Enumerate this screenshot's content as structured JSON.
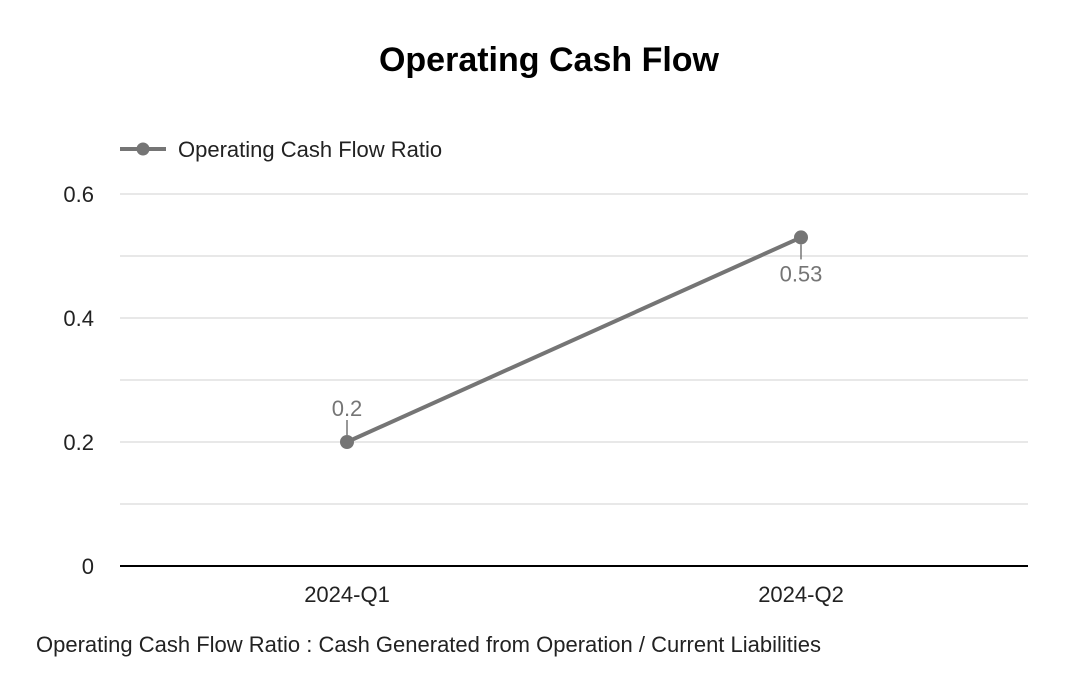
{
  "chart_data": {
    "type": "line",
    "title": "Operating Cash Flow",
    "categories": [
      "2024-Q1",
      "2024-Q2"
    ],
    "series": [
      {
        "name": "Operating Cash Flow Ratio",
        "values": [
          0.2,
          0.53
        ],
        "labels": [
          "0.2",
          "0.53"
        ],
        "color": "#757575"
      }
    ],
    "ylim": [
      0,
      0.6
    ],
    "yticks": [
      {
        "value": 0,
        "label": "0"
      },
      {
        "value": 0.2,
        "label": "0.2"
      },
      {
        "value": 0.4,
        "label": "0.4"
      },
      {
        "value": 0.6,
        "label": "0.6"
      }
    ],
    "minor_gridlines": [
      0.1,
      0.3,
      0.5
    ],
    "grid": true,
    "legend_position": "top-left",
    "xlabel": "",
    "ylabel": "",
    "colors": {
      "gridline": "#e0e0e0",
      "baseline": "#000000",
      "series": "#757575"
    }
  },
  "footnote": "Operating Cash Flow Ratio : Cash Generated from Operation / Current Liabilities"
}
